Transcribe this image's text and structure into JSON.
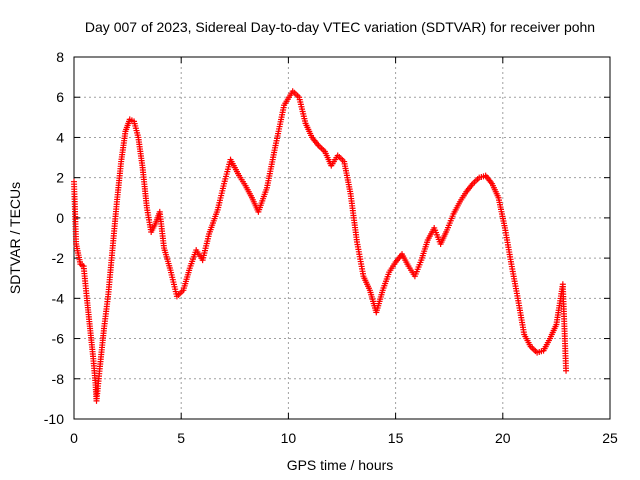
{
  "chart_data": {
    "type": "scatter",
    "title": "Day 007 of 2023, Sidereal Day-to-day VTEC variation (SDTVAR) for receiver pohn",
    "xlabel": "GPS time / hours",
    "ylabel": "SDTVAR / TECUs",
    "xlim": [
      0,
      25
    ],
    "ylim": [
      -10,
      8
    ],
    "xticks": [
      "0",
      "5",
      "10",
      "15",
      "20",
      "25"
    ],
    "yticks": [
      "-10",
      "-8",
      "-6",
      "-4",
      "-2",
      "0",
      "2",
      "4",
      "6",
      "8"
    ],
    "grid": true,
    "marker": "+",
    "color": "#ff0000",
    "series": [
      {
        "name": "",
        "x": [
          0.0,
          0.1,
          0.3,
          0.45,
          0.6,
          0.75,
          0.9,
          1.0,
          1.05,
          1.2,
          1.4,
          1.6,
          1.8,
          2.0,
          2.2,
          2.4,
          2.6,
          2.8,
          3.0,
          3.2,
          3.4,
          3.6,
          3.8,
          4.0,
          4.2,
          4.5,
          4.8,
          5.1,
          5.4,
          5.7,
          6.0,
          6.3,
          6.7,
          7.0,
          7.3,
          7.7,
          8.0,
          8.3,
          8.6,
          9.0,
          9.4,
          9.8,
          10.2,
          10.5,
          10.8,
          11.1,
          11.4,
          11.7,
          12.0,
          12.3,
          12.6,
          12.9,
          13.2,
          13.5,
          13.8,
          14.1,
          14.4,
          14.7,
          15.0,
          15.3,
          15.6,
          15.9,
          16.2,
          16.5,
          16.8,
          17.1,
          17.4,
          17.7,
          18.0,
          18.3,
          18.6,
          18.9,
          19.2,
          19.5,
          19.8,
          20.1,
          20.4,
          20.7,
          21.0,
          21.3,
          21.6,
          21.9,
          22.2,
          22.5,
          22.8,
          22.95
        ],
        "y": [
          1.8,
          -1.3,
          -2.3,
          -2.4,
          -4.0,
          -5.5,
          -7.0,
          -8.2,
          -9.1,
          -7.5,
          -5.5,
          -3.8,
          -1.5,
          0.8,
          2.8,
          4.3,
          4.9,
          4.8,
          4.0,
          2.5,
          0.5,
          -0.7,
          -0.3,
          0.3,
          -1.5,
          -2.6,
          -3.9,
          -3.6,
          -2.5,
          -1.6,
          -2.1,
          -0.8,
          0.4,
          1.7,
          2.9,
          2.1,
          1.6,
          1.0,
          0.3,
          1.5,
          3.6,
          5.6,
          6.3,
          6.0,
          4.7,
          4.0,
          3.6,
          3.3,
          2.6,
          3.1,
          2.8,
          1.2,
          -1.2,
          -2.9,
          -3.6,
          -4.7,
          -3.6,
          -2.7,
          -2.2,
          -1.8,
          -2.4,
          -2.9,
          -2.1,
          -1.1,
          -0.5,
          -1.3,
          -0.6,
          0.2,
          0.8,
          1.3,
          1.7,
          2.0,
          2.1,
          1.7,
          1.0,
          -0.5,
          -2.3,
          -4.0,
          -5.8,
          -6.4,
          -6.7,
          -6.6,
          -6.0,
          -5.3,
          -3.3,
          -7.6
        ]
      }
    ]
  }
}
